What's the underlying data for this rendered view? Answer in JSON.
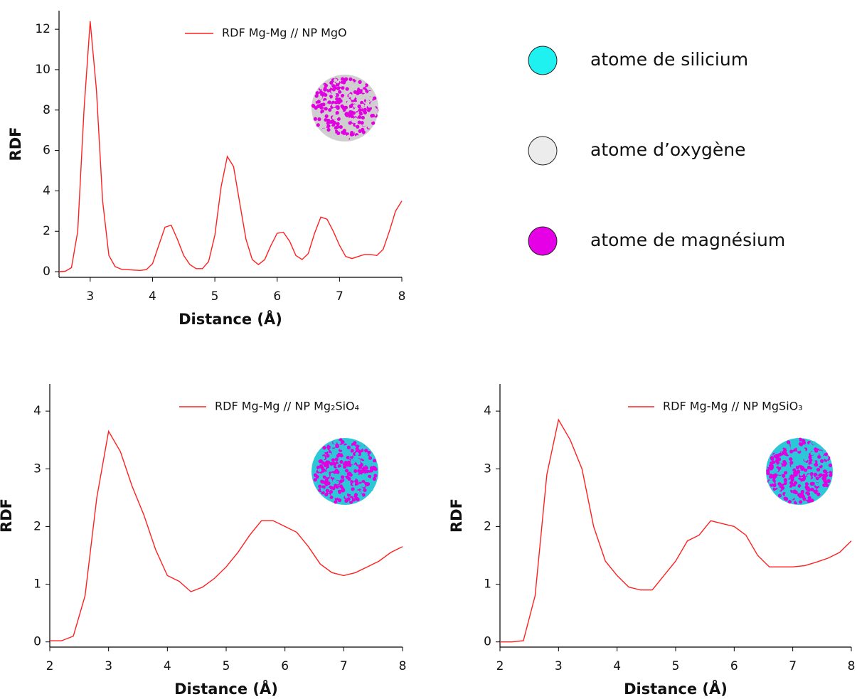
{
  "chart_data": [
    {
      "type": "line",
      "xlabel": "Distance (Å)",
      "ylabel": "RDF",
      "x": [
        2.5,
        2.6,
        2.7,
        2.8,
        2.9,
        3.0,
        3.1,
        3.2,
        3.3,
        3.4,
        3.5,
        3.6,
        3.7,
        3.8,
        3.9,
        4.0,
        4.1,
        4.2,
        4.3,
        4.4,
        4.5,
        4.6,
        4.7,
        4.8,
        4.9,
        5.0,
        5.1,
        5.2,
        5.3,
        5.4,
        5.5,
        5.6,
        5.7,
        5.8,
        5.9,
        6.0,
        6.1,
        6.2,
        6.3,
        6.4,
        6.5,
        6.6,
        6.7,
        6.8,
        6.9,
        7.0,
        7.1,
        7.2,
        7.3,
        7.4,
        7.5,
        7.6,
        7.7,
        7.8,
        7.9,
        8.0
      ],
      "series": [
        {
          "name": "RDF Mg-Mg // NP MgO",
          "color": "#ff2020",
          "values": [
            0,
            0.02,
            0.2,
            2.0,
            8.0,
            12.4,
            9.0,
            3.5,
            0.8,
            0.25,
            0.12,
            0.1,
            0.08,
            0.06,
            0.1,
            0.4,
            1.3,
            2.2,
            2.3,
            1.6,
            0.8,
            0.35,
            0.15,
            0.15,
            0.5,
            1.8,
            4.2,
            5.7,
            5.2,
            3.4,
            1.6,
            0.6,
            0.35,
            0.6,
            1.3,
            1.9,
            1.95,
            1.5,
            0.8,
            0.6,
            0.9,
            1.9,
            2.7,
            2.6,
            2.0,
            1.3,
            0.75,
            0.65,
            0.75,
            0.85,
            0.85,
            0.8,
            1.1,
            2.0,
            3.0,
            3.5
          ]
        }
      ],
      "xlim": [
        2.5,
        8
      ],
      "xticks": [
        3,
        4,
        5,
        6,
        7,
        8
      ],
      "ylim": [
        -0.28,
        12.92
      ],
      "yticks": [
        0,
        2,
        4,
        6,
        8,
        10,
        12
      ]
    },
    {
      "type": "line",
      "xlabel": "Distance (Å)",
      "ylabel": "RDF",
      "x": [
        2.0,
        2.2,
        2.4,
        2.6,
        2.8,
        3.0,
        3.2,
        3.4,
        3.6,
        3.8,
        4.0,
        4.2,
        4.4,
        4.6,
        4.8,
        5.0,
        5.2,
        5.4,
        5.6,
        5.8,
        6.0,
        6.2,
        6.4,
        6.6,
        6.8,
        7.0,
        7.2,
        7.4,
        7.6,
        7.8,
        8.0
      ],
      "series": [
        {
          "name": "RDF Mg-Mg // NP Mg₂SiO₄",
          "color": "#ff2020",
          "values": [
            0.02,
            0.02,
            0.1,
            0.8,
            2.5,
            3.65,
            3.3,
            2.7,
            2.2,
            1.6,
            1.15,
            1.05,
            0.87,
            0.95,
            1.1,
            1.3,
            1.55,
            1.85,
            2.1,
            2.1,
            2.0,
            1.9,
            1.65,
            1.35,
            1.2,
            1.15,
            1.2,
            1.3,
            1.4,
            1.55,
            1.65
          ]
        }
      ],
      "xlim": [
        2,
        8
      ],
      "xticks": [
        2,
        3,
        4,
        5,
        6,
        7,
        8
      ],
      "ylim": [
        -0.09,
        4.47
      ],
      "yticks": [
        0,
        1,
        2,
        3,
        4
      ]
    },
    {
      "type": "line",
      "xlabel": "Distance (Å)",
      "ylabel": "RDF",
      "x": [
        2.0,
        2.2,
        2.4,
        2.6,
        2.8,
        3.0,
        3.2,
        3.4,
        3.6,
        3.8,
        4.0,
        4.2,
        4.4,
        4.6,
        4.8,
        5.0,
        5.2,
        5.4,
        5.6,
        5.8,
        6.0,
        6.2,
        6.4,
        6.6,
        6.8,
        7.0,
        7.2,
        7.4,
        7.6,
        7.8,
        8.0
      ],
      "series": [
        {
          "name": "RDF Mg-Mg // NP MgSiO₃",
          "color": "#ff2020",
          "values": [
            0,
            0,
            0.02,
            0.8,
            2.9,
            3.85,
            3.5,
            3.0,
            2.0,
            1.4,
            1.15,
            0.95,
            0.9,
            0.9,
            1.15,
            1.4,
            1.75,
            1.85,
            2.1,
            2.05,
            2.0,
            1.85,
            1.5,
            1.3,
            1.3,
            1.3,
            1.32,
            1.38,
            1.45,
            1.55,
            1.75
          ]
        }
      ],
      "xlim": [
        2,
        8
      ],
      "xticks": [
        2,
        3,
        4,
        5,
        6,
        7,
        8
      ],
      "ylim": [
        -0.09,
        4.47
      ],
      "yticks": [
        0,
        1,
        2,
        3,
        4
      ]
    }
  ],
  "atom_legend": [
    {
      "label": "atome de silicium",
      "color": "#1ff0f0"
    },
    {
      "label": "atome d’oxygène",
      "color": "#ececec"
    },
    {
      "label": "atome de magnésium",
      "color": "#e600e6"
    }
  ]
}
